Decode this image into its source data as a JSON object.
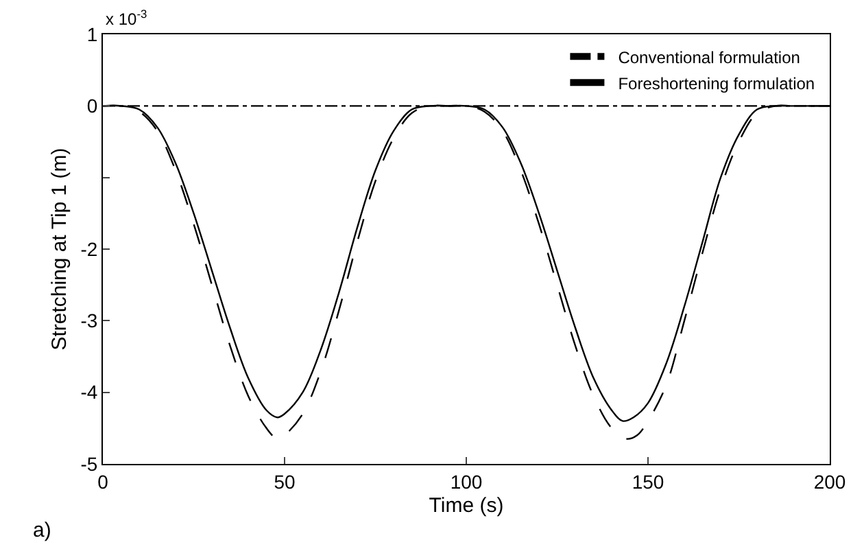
{
  "chart_data": {
    "type": "line",
    "xlabel": "Time (s)",
    "ylabel": "Stretching at Tip 1 (m)",
    "xlim": [
      0,
      200
    ],
    "xticks": [
      0,
      50,
      100,
      150,
      200
    ],
    "ylim": [
      -5,
      1
    ],
    "yticks": [
      1,
      0,
      {
        "value": -1,
        "label": null
      },
      -2,
      -3,
      -4,
      -5
    ],
    "legend": "top right",
    "marker": "none",
    "annotations": [
      "x 10$^{-3}$",
      "a)"
    ],
    "series": [
      {
        "color": "#000000",
        "line_style": "solid",
        "x": [
          0,
          5,
          10,
          15,
          20,
          25,
          30,
          35,
          40,
          45,
          48,
          50,
          55,
          60,
          65,
          70,
          75,
          80,
          85,
          90,
          95,
          100,
          105,
          110,
          115,
          120,
          125,
          130,
          135,
          140,
          143,
          146,
          150,
          155,
          160,
          165,
          170,
          175,
          180,
          185,
          190,
          200
        ],
        "values": [
          0,
          0,
          -0.05,
          -0.3,
          -0.8,
          -1.5,
          -2.3,
          -3.1,
          -3.8,
          -4.25,
          -4.35,
          -4.3,
          -4.0,
          -3.4,
          -2.6,
          -1.7,
          -0.9,
          -0.35,
          -0.05,
          0,
          0,
          0,
          -0.05,
          -0.3,
          -0.8,
          -1.5,
          -2.3,
          -3.1,
          -3.8,
          -4.25,
          -4.4,
          -4.35,
          -4.15,
          -3.6,
          -2.8,
          -1.9,
          -1.0,
          -0.4,
          -0.05,
          0,
          0,
          0
        ]
      },
      {
        "name": "Conventional formulation",
        "color": "#000000",
        "line_style": "dashdot",
        "x": [
          0,
          200
        ],
        "values": [
          0,
          0
        ]
      },
      {
        "name": "Foreshortening formulation",
        "color": "#000000",
        "line_style": "dashed",
        "x": [
          0,
          5,
          10,
          15,
          20,
          25,
          30,
          35,
          40,
          45,
          48,
          50,
          55,
          60,
          65,
          70,
          75,
          80,
          85,
          90,
          95,
          100,
          105,
          110,
          115,
          120,
          125,
          130,
          135,
          140,
          144,
          147,
          150,
          155,
          160,
          165,
          170,
          175,
          180,
          185,
          190,
          200
        ],
        "values": [
          0,
          0,
          -0.08,
          -0.35,
          -0.9,
          -1.65,
          -2.5,
          -3.35,
          -4.05,
          -4.5,
          -4.65,
          -4.6,
          -4.3,
          -3.7,
          -2.85,
          -1.9,
          -1.05,
          -0.45,
          -0.1,
          0,
          0,
          0,
          -0.08,
          -0.35,
          -0.9,
          -1.65,
          -2.5,
          -3.35,
          -4.05,
          -4.5,
          -4.65,
          -4.6,
          -4.4,
          -3.9,
          -3.0,
          -2.05,
          -1.15,
          -0.5,
          -0.1,
          0,
          0,
          0
        ]
      }
    ]
  }
}
